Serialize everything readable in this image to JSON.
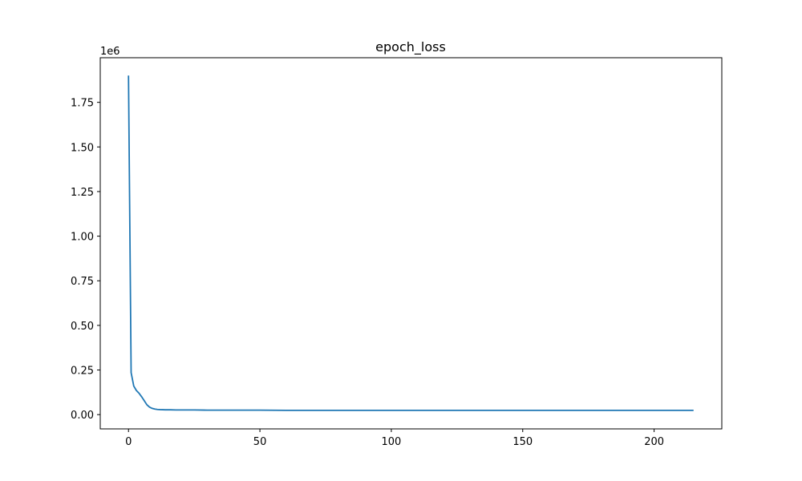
{
  "chart_data": {
    "type": "line",
    "title": "epoch_loss",
    "xlabel": "",
    "ylabel": "",
    "y_offset_label": "1e6",
    "xlim": [
      -10.75,
      225.75
    ],
    "ylim": [
      -0.08,
      2.0
    ],
    "x_ticks": [
      0,
      50,
      100,
      150,
      200
    ],
    "x_tick_labels": [
      "0",
      "50",
      "100",
      "150",
      "200"
    ],
    "y_ticks": [
      0.0,
      0.25,
      0.5,
      0.75,
      1.0,
      1.25,
      1.5,
      1.75
    ],
    "y_tick_labels": [
      "0.00",
      "0.25",
      "0.50",
      "0.75",
      "1.00",
      "1.25",
      "1.50",
      "1.75"
    ],
    "grid": false,
    "line_color": "#1f77b4",
    "series": [
      {
        "x": [
          0,
          1,
          2,
          3,
          4,
          5,
          6,
          7,
          8,
          9,
          10,
          11,
          12,
          14,
          16,
          18,
          20,
          25,
          30,
          40,
          50,
          60,
          80,
          100,
          120,
          140,
          160,
          180,
          200,
          215
        ],
        "values": [
          1.9,
          0.235,
          0.16,
          0.135,
          0.12,
          0.1,
          0.078,
          0.055,
          0.042,
          0.035,
          0.031,
          0.029,
          0.028,
          0.027,
          0.027,
          0.026,
          0.026,
          0.026,
          0.025,
          0.025,
          0.025,
          0.024,
          0.024,
          0.024,
          0.024,
          0.024,
          0.024,
          0.024,
          0.024,
          0.024
        ]
      }
    ]
  }
}
